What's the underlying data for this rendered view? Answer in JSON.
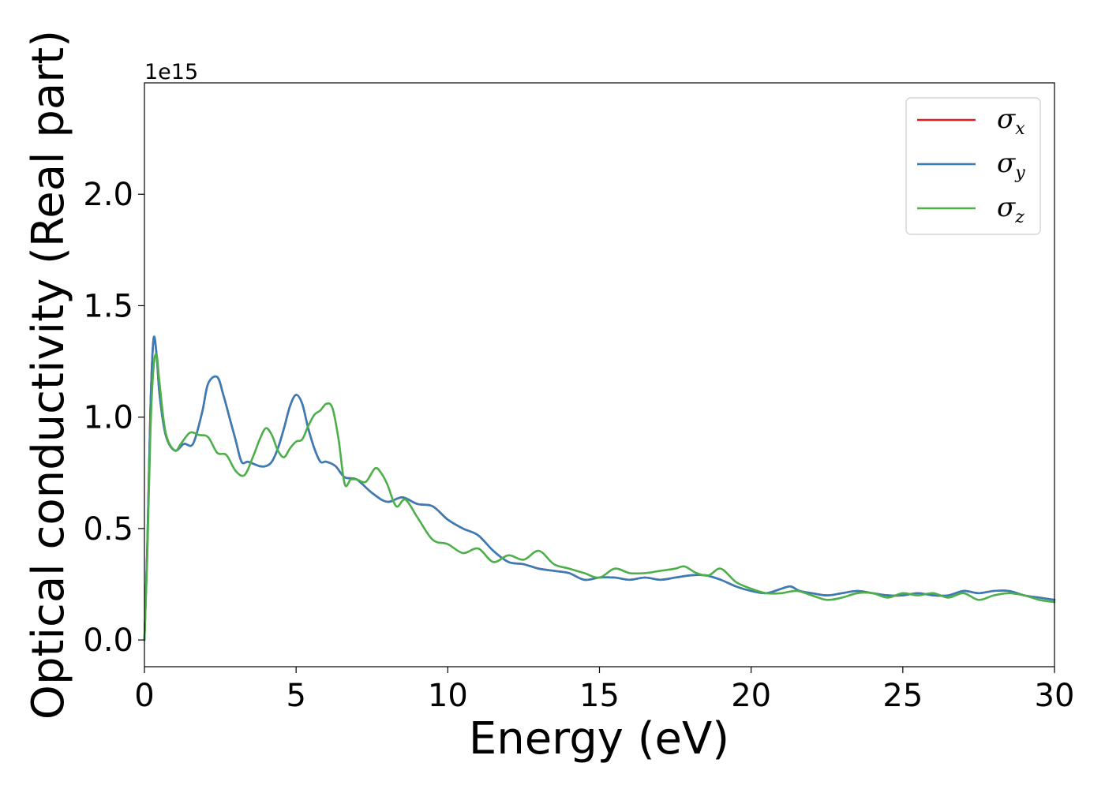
{
  "chart_data": {
    "type": "line",
    "xlabel": "Energy (eV)",
    "ylabel": "Optical conductivity (Real part)",
    "y_offset_text": "1e15",
    "xlim": [
      0,
      30
    ],
    "ylim": [
      -0.12,
      2.5
    ],
    "x_ticks": [
      0,
      5,
      10,
      15,
      20,
      25,
      30
    ],
    "x_tick_labels": [
      "0",
      "5",
      "10",
      "15",
      "20",
      "25",
      "30"
    ],
    "y_ticks": [
      0.0,
      0.5,
      1.0,
      1.5,
      2.0
    ],
    "y_tick_labels": [
      "0.0",
      "0.5",
      "1.0",
      "1.5",
      "2.0"
    ],
    "grid": false,
    "legend_position": "top-right",
    "series": [
      {
        "name": "σx",
        "label_main": "σ",
        "label_sub": "x",
        "color": "#e41a1c",
        "x": [
          0,
          0.1,
          0.2,
          0.3,
          0.4,
          0.5,
          0.7,
          1.0,
          1.3,
          1.6,
          1.9,
          2.1,
          2.4,
          2.6,
          2.8,
          3.0,
          3.2,
          3.4,
          3.6,
          3.8,
          4.0,
          4.2,
          4.4,
          4.6,
          4.8,
          5.0,
          5.2,
          5.4,
          5.6,
          5.8,
          6.0,
          6.3,
          6.6,
          7.0,
          7.5,
          8.0,
          8.5,
          9.0,
          9.5,
          10.0,
          10.5,
          11.0,
          11.5,
          12.0,
          12.5,
          13.0,
          13.5,
          14.0,
          14.5,
          15.0,
          15.5,
          16.0,
          16.5,
          17.0,
          17.5,
          18.0,
          18.5,
          19.0,
          19.5,
          20.0,
          20.5,
          21.0,
          21.3,
          21.6,
          22.0,
          22.5,
          23.0,
          23.5,
          24.0,
          24.5,
          25.0,
          25.5,
          26.0,
          26.5,
          27.0,
          27.5,
          28.0,
          28.5,
          29.0,
          29.5,
          30.0
        ],
        "y": [
          0.0,
          0.45,
          1.05,
          1.35,
          1.28,
          1.1,
          0.92,
          0.85,
          0.88,
          0.88,
          1.02,
          1.15,
          1.18,
          1.1,
          1.0,
          0.9,
          0.8,
          0.8,
          0.79,
          0.78,
          0.78,
          0.8,
          0.86,
          0.95,
          1.05,
          1.1,
          1.06,
          0.95,
          0.86,
          0.8,
          0.8,
          0.78,
          0.73,
          0.72,
          0.66,
          0.62,
          0.64,
          0.61,
          0.6,
          0.54,
          0.5,
          0.47,
          0.4,
          0.35,
          0.34,
          0.32,
          0.31,
          0.3,
          0.27,
          0.28,
          0.28,
          0.27,
          0.28,
          0.27,
          0.28,
          0.29,
          0.29,
          0.27,
          0.24,
          0.22,
          0.21,
          0.23,
          0.24,
          0.22,
          0.21,
          0.2,
          0.21,
          0.22,
          0.21,
          0.2,
          0.2,
          0.21,
          0.2,
          0.2,
          0.22,
          0.21,
          0.22,
          0.22,
          0.2,
          0.19,
          0.18
        ]
      },
      {
        "name": "σy",
        "label_main": "σ",
        "label_sub": "y",
        "color": "#377eb8",
        "x": [
          0,
          0.1,
          0.2,
          0.3,
          0.4,
          0.5,
          0.7,
          1.0,
          1.3,
          1.6,
          1.9,
          2.1,
          2.4,
          2.6,
          2.8,
          3.0,
          3.2,
          3.4,
          3.6,
          3.8,
          4.0,
          4.2,
          4.4,
          4.6,
          4.8,
          5.0,
          5.2,
          5.4,
          5.6,
          5.8,
          6.0,
          6.3,
          6.6,
          7.0,
          7.5,
          8.0,
          8.5,
          9.0,
          9.5,
          10.0,
          10.5,
          11.0,
          11.5,
          12.0,
          12.5,
          13.0,
          13.5,
          14.0,
          14.5,
          15.0,
          15.5,
          16.0,
          16.5,
          17.0,
          17.5,
          18.0,
          18.5,
          19.0,
          19.5,
          20.0,
          20.5,
          21.0,
          21.3,
          21.6,
          22.0,
          22.5,
          23.0,
          23.5,
          24.0,
          24.5,
          25.0,
          25.5,
          26.0,
          26.5,
          27.0,
          27.5,
          28.0,
          28.5,
          29.0,
          29.5,
          30.0
        ],
        "y": [
          0.0,
          0.45,
          1.05,
          1.35,
          1.28,
          1.1,
          0.92,
          0.85,
          0.88,
          0.88,
          1.02,
          1.15,
          1.18,
          1.1,
          1.0,
          0.9,
          0.8,
          0.8,
          0.79,
          0.78,
          0.78,
          0.8,
          0.86,
          0.95,
          1.05,
          1.1,
          1.06,
          0.95,
          0.86,
          0.8,
          0.8,
          0.78,
          0.73,
          0.72,
          0.66,
          0.62,
          0.64,
          0.61,
          0.6,
          0.54,
          0.5,
          0.47,
          0.4,
          0.35,
          0.34,
          0.32,
          0.31,
          0.3,
          0.27,
          0.28,
          0.28,
          0.27,
          0.28,
          0.27,
          0.28,
          0.29,
          0.29,
          0.27,
          0.24,
          0.22,
          0.21,
          0.23,
          0.24,
          0.22,
          0.21,
          0.2,
          0.21,
          0.22,
          0.21,
          0.2,
          0.2,
          0.21,
          0.2,
          0.2,
          0.22,
          0.21,
          0.22,
          0.22,
          0.2,
          0.19,
          0.18
        ]
      },
      {
        "name": "σz",
        "label_main": "σ",
        "label_sub": "z",
        "color": "#4daf4a",
        "x": [
          0,
          0.1,
          0.2,
          0.3,
          0.4,
          0.5,
          0.7,
          1.0,
          1.2,
          1.5,
          1.8,
          2.1,
          2.4,
          2.7,
          3.0,
          3.3,
          3.6,
          3.8,
          4.0,
          4.2,
          4.4,
          4.6,
          4.8,
          5.0,
          5.2,
          5.4,
          5.6,
          5.8,
          6.0,
          6.2,
          6.4,
          6.6,
          6.8,
          7.0,
          7.3,
          7.6,
          7.8,
          8.0,
          8.3,
          8.6,
          9.0,
          9.5,
          10.0,
          10.5,
          11.0,
          11.5,
          12.0,
          12.5,
          13.0,
          13.5,
          14.0,
          14.5,
          15.0,
          15.5,
          16.0,
          16.5,
          17.0,
          17.5,
          17.8,
          18.2,
          18.6,
          19.0,
          19.5,
          20.0,
          20.5,
          21.0,
          21.5,
          22.0,
          22.5,
          23.0,
          23.5,
          24.0,
          24.5,
          25.0,
          25.5,
          26.0,
          26.5,
          27.0,
          27.5,
          28.0,
          28.5,
          29.0,
          29.5,
          30.0
        ],
        "y": [
          0.0,
          0.4,
          0.95,
          1.22,
          1.28,
          1.15,
          0.93,
          0.85,
          0.88,
          0.93,
          0.92,
          0.91,
          0.84,
          0.83,
          0.76,
          0.74,
          0.83,
          0.9,
          0.95,
          0.92,
          0.85,
          0.82,
          0.86,
          0.89,
          0.9,
          0.96,
          1.01,
          1.03,
          1.06,
          1.04,
          0.9,
          0.7,
          0.72,
          0.72,
          0.71,
          0.77,
          0.75,
          0.7,
          0.6,
          0.63,
          0.55,
          0.45,
          0.43,
          0.39,
          0.41,
          0.35,
          0.38,
          0.36,
          0.4,
          0.34,
          0.32,
          0.3,
          0.28,
          0.32,
          0.3,
          0.3,
          0.31,
          0.32,
          0.33,
          0.3,
          0.29,
          0.32,
          0.26,
          0.23,
          0.21,
          0.21,
          0.22,
          0.2,
          0.18,
          0.19,
          0.21,
          0.21,
          0.19,
          0.21,
          0.2,
          0.21,
          0.19,
          0.21,
          0.18,
          0.2,
          0.21,
          0.2,
          0.18,
          0.17
        ]
      }
    ]
  }
}
